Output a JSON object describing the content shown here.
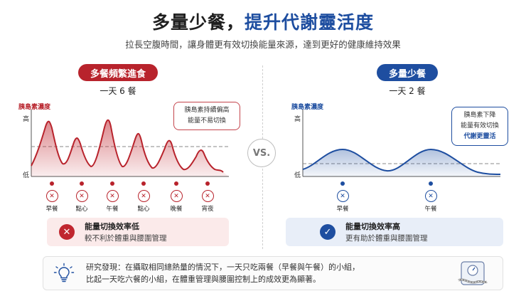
{
  "header": {
    "title_dark": "多量少餐，",
    "title_blue": "提升代謝靈活度",
    "subtitle": "拉長空腹時間，讓身體更有效切換能量來源，達到更好的健康維持效果"
  },
  "vs_label": "VS.",
  "left": {
    "badge": "多餐頻繁進食",
    "frequency": "一天 6 餐",
    "axis_title": "胰島素濃度",
    "tick_high": "高",
    "tick_low": "低",
    "callout_line1": "胰島素持續偏高",
    "callout_line2": "能量不易切換",
    "meals": [
      "早餐",
      "點心",
      "午餐",
      "點心",
      "晚餐",
      "宵夜"
    ],
    "result_title": "能量切換效率低",
    "result_desc": "較不利於體重與腰圍管理",
    "result_icon": "x-icon",
    "color": "#b8232c"
  },
  "right": {
    "badge": "多量少餐",
    "frequency": "一天 2 餐",
    "axis_title": "胰島素濃度",
    "tick_high": "高",
    "tick_low": "低",
    "callout_line1": "胰島素下降",
    "callout_line2": "能量有效切換",
    "callout_line3": "代謝更靈活",
    "meals": [
      "早餐",
      "午餐"
    ],
    "result_title": "能量切換效率高",
    "result_desc": "更有助於體重與腰圍管理",
    "result_icon": "check-icon",
    "color": "#1e4ea0"
  },
  "note": {
    "line1": "研究發現：在攝取相同總熱量的情況下，一天只吃兩餐（早餐與午餐）的小組，",
    "line2": "比起一天吃六餐的小組，在體重管理與腰圍控制上的成效更為顯著。",
    "left_icon": "lightbulb-icon",
    "right_icon": "scale-tape-icon"
  }
}
